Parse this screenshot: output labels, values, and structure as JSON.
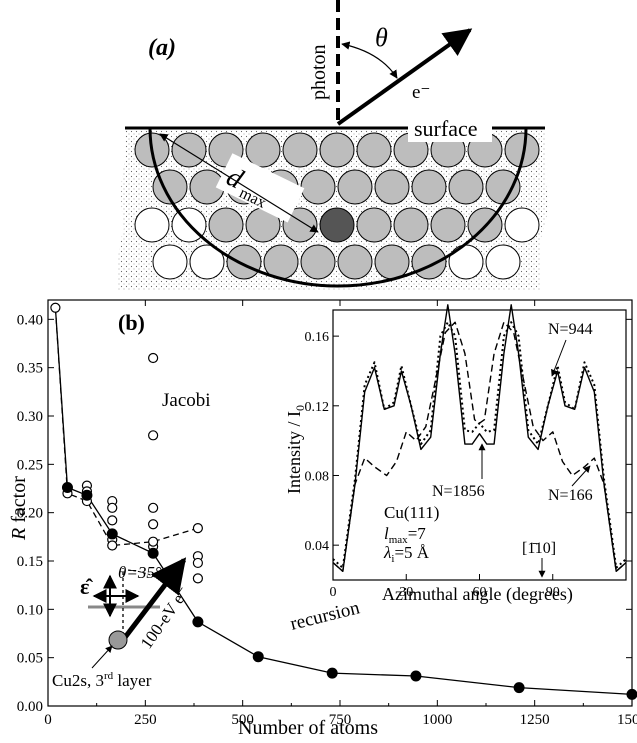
{
  "panel_a": {
    "label": "(a)",
    "photon_label": "photon",
    "theta_label": "θ",
    "electron_label": "e⁻",
    "surface_label": "surface",
    "dmax_label": "d",
    "dmax_sub": "max"
  },
  "chart_data": [
    {
      "type": "scatter",
      "panel_label": "(b)",
      "xlabel": "Number of atoms",
      "ylabel_italic": "R",
      "ylabel_rest": " factor",
      "xlim": [
        0,
        1500
      ],
      "ylim": [
        0,
        0.42
      ],
      "x_ticks": [
        0,
        250,
        500,
        750,
        1000,
        1250,
        1500
      ],
      "y_ticks": [
        0.0,
        0.05,
        0.1,
        0.15,
        0.2,
        0.25,
        0.3,
        0.35,
        0.4
      ],
      "series": [
        {
          "name": "recursion",
          "style": "filled-circle-solid-line",
          "x": [
            19,
            50,
            100,
            165,
            270,
            385,
            540,
            730,
            945,
            1210,
            1500
          ],
          "y": [
            0.412,
            0.226,
            0.218,
            0.178,
            0.158,
            0.087,
            0.051,
            0.034,
            0.031,
            0.019,
            0.012
          ]
        },
        {
          "name": "Jacobi",
          "style": "open-circle-dashed-line",
          "x": [
            19,
            50,
            100,
            165,
            270,
            385
          ],
          "y": [
            0.412,
            0.22,
            0.212,
            0.166,
            0.17,
            0.184
          ],
          "extra_points": [
            [
              50,
              0.226
            ],
            [
              100,
              0.228
            ],
            [
              100,
              0.222
            ],
            [
              165,
              0.212
            ],
            [
              165,
              0.205
            ],
            [
              165,
              0.192
            ],
            [
              165,
              0.172
            ],
            [
              270,
              0.36
            ],
            [
              270,
              0.28
            ],
            [
              270,
              0.205
            ],
            [
              270,
              0.188
            ],
            [
              270,
              0.165
            ],
            [
              385,
              0.155
            ],
            [
              385,
              0.148
            ],
            [
              385,
              0.132
            ]
          ]
        }
      ],
      "annotations": {
        "jacobi": "Jacobi",
        "recursion": "recursion",
        "theta": "θ=35°",
        "epsilon": "ε̂",
        "beam": "100-eV e⁻",
        "emitter_pre": "Cu2s, 3",
        "emitter_sup": "rd",
        "emitter_post": " layer"
      }
    },
    {
      "type": "line",
      "xlabel": "Azimuthal angle (degrees)",
      "ylabel": "Intensity / I",
      "ylabel_sub": "0",
      "xlim": [
        0,
        120
      ],
      "ylim": [
        0.02,
        0.175
      ],
      "x_ticks": [
        0,
        30,
        60,
        90
      ],
      "y_ticks": [
        0.04,
        0.08,
        0.12,
        0.16
      ],
      "series": [
        {
          "name": "N=1856",
          "style": "solid",
          "x": [
            0,
            4,
            9,
            13,
            17,
            21,
            25,
            28,
            32,
            36,
            40,
            44,
            47,
            50,
            54,
            57,
            60,
            63,
            66,
            70,
            73,
            76,
            80,
            84,
            88,
            92,
            95,
            99,
            103,
            107,
            111,
            116,
            120
          ],
          "y": [
            0.03,
            0.025,
            0.075,
            0.128,
            0.142,
            0.118,
            0.12,
            0.14,
            0.12,
            0.095,
            0.102,
            0.15,
            0.178,
            0.15,
            0.098,
            0.098,
            0.104,
            0.098,
            0.098,
            0.15,
            0.178,
            0.15,
            0.102,
            0.095,
            0.12,
            0.14,
            0.12,
            0.118,
            0.142,
            0.128,
            0.075,
            0.025,
            0.03
          ]
        },
        {
          "name": "N=944",
          "style": "dotted",
          "x": [
            0,
            4,
            9,
            13,
            17,
            21,
            25,
            28,
            32,
            36,
            40,
            44,
            47,
            50,
            54,
            57,
            60,
            63,
            66,
            70,
            73,
            76,
            80,
            84,
            88,
            92,
            95,
            99,
            103,
            107,
            111,
            116,
            120
          ],
          "y": [
            0.032,
            0.027,
            0.078,
            0.132,
            0.145,
            0.118,
            0.122,
            0.143,
            0.12,
            0.098,
            0.106,
            0.16,
            0.168,
            0.16,
            0.106,
            0.105,
            0.11,
            0.105,
            0.106,
            0.16,
            0.168,
            0.16,
            0.106,
            0.098,
            0.12,
            0.143,
            0.122,
            0.118,
            0.145,
            0.132,
            0.078,
            0.027,
            0.032
          ]
        },
        {
          "name": "N=166",
          "style": "dashed",
          "x": [
            0,
            4,
            9,
            13,
            17,
            22,
            26,
            30,
            34,
            38,
            42,
            46,
            50,
            54,
            58,
            60,
            62,
            66,
            70,
            74,
            78,
            82,
            86,
            90,
            94,
            98,
            103,
            107,
            111,
            116,
            120
          ],
          "y": [
            0.03,
            0.025,
            0.075,
            0.09,
            0.085,
            0.08,
            0.088,
            0.105,
            0.1,
            0.108,
            0.135,
            0.162,
            0.168,
            0.15,
            0.112,
            0.11,
            0.112,
            0.15,
            0.168,
            0.162,
            0.135,
            0.108,
            0.1,
            0.105,
            0.088,
            0.08,
            0.085,
            0.09,
            0.075,
            0.025,
            0.03
          ]
        }
      ],
      "annotations": {
        "n944": "N=944",
        "n1856": "N=1856",
        "n166": "N=166",
        "material": "Cu(111)",
        "lmax_italic": "l",
        "lmax_sub": "max",
        "lmax_value": "=7",
        "lambda_italic": "λ",
        "lambda_sub": "i",
        "lambda_value": "=5 Å",
        "direction": "[1̄10]"
      }
    }
  ]
}
